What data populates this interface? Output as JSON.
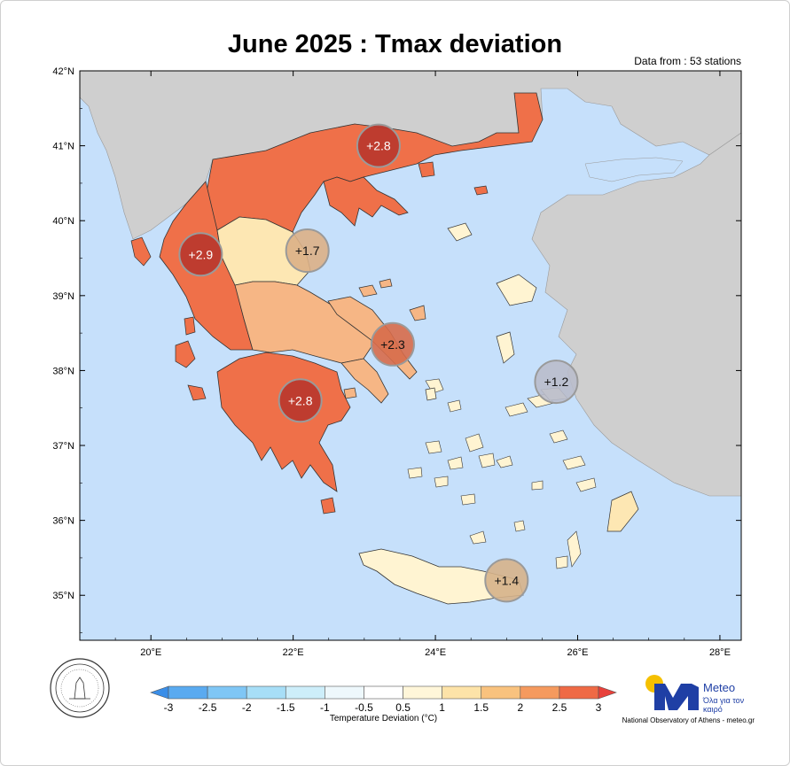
{
  "title": "June 2025 : Tmax deviation",
  "source_note": "Data from : 53 stations",
  "lat_ticks": [
    "42°N",
    "41°N",
    "40°N",
    "39°N",
    "38°N",
    "37°N",
    "36°N",
    "35°N"
  ],
  "lon_ticks": [
    "20°E",
    "22°E",
    "24°E",
    "26°E",
    "28°E"
  ],
  "regions": [
    {
      "label": "+2.8",
      "lon": 23.2,
      "lat": 41.0,
      "value": 2.8
    },
    {
      "label": "+2.9",
      "lon": 20.7,
      "lat": 39.55,
      "value": 2.9
    },
    {
      "label": "+1.7",
      "lon": 22.2,
      "lat": 39.6,
      "value": 1.7
    },
    {
      "label": "+2.3",
      "lon": 23.4,
      "lat": 38.35,
      "value": 2.3
    },
    {
      "label": "+2.8",
      "lon": 22.1,
      "lat": 37.6,
      "value": 2.8
    },
    {
      "label": "+1.2",
      "lon": 25.7,
      "lat": 37.85,
      "value": 1.2
    },
    {
      "label": "+1.4",
      "lon": 25.0,
      "lat": 35.2,
      "value": 1.4
    }
  ],
  "colorbar": {
    "title": "Temperature Deviation (°C)",
    "tick_labels": [
      "-3",
      "-2.5",
      "-2",
      "-1.5",
      "-1",
      "-0.5",
      "0.5",
      "1",
      "1.5",
      "2",
      "2.5",
      "3"
    ],
    "colors": [
      "#3a8ee8",
      "#5aaaf0",
      "#7fc6f5",
      "#a7def7",
      "#cdeefa",
      "#eef8fc",
      "#ffffff",
      "#fff6d9",
      "#fde3a8",
      "#f9c27e",
      "#f59a5e",
      "#ef6a45",
      "#e8403a"
    ]
  },
  "colors": {
    "sea": "#c6e0fb",
    "land_other": "#cfcfcf",
    "very_warm": "#ef7049",
    "warm": "#f6b685",
    "mild": "#fde7b3",
    "cool": "#fff4d2"
  },
  "brand": {
    "name": "Meteo",
    "tagline": "Όλα για τον καιρό"
  },
  "footer": "National Observatory of Athens - meteo.gr",
  "seal_icon": "observatory-seal-icon",
  "logo_icon": "meteo-logo-icon"
}
